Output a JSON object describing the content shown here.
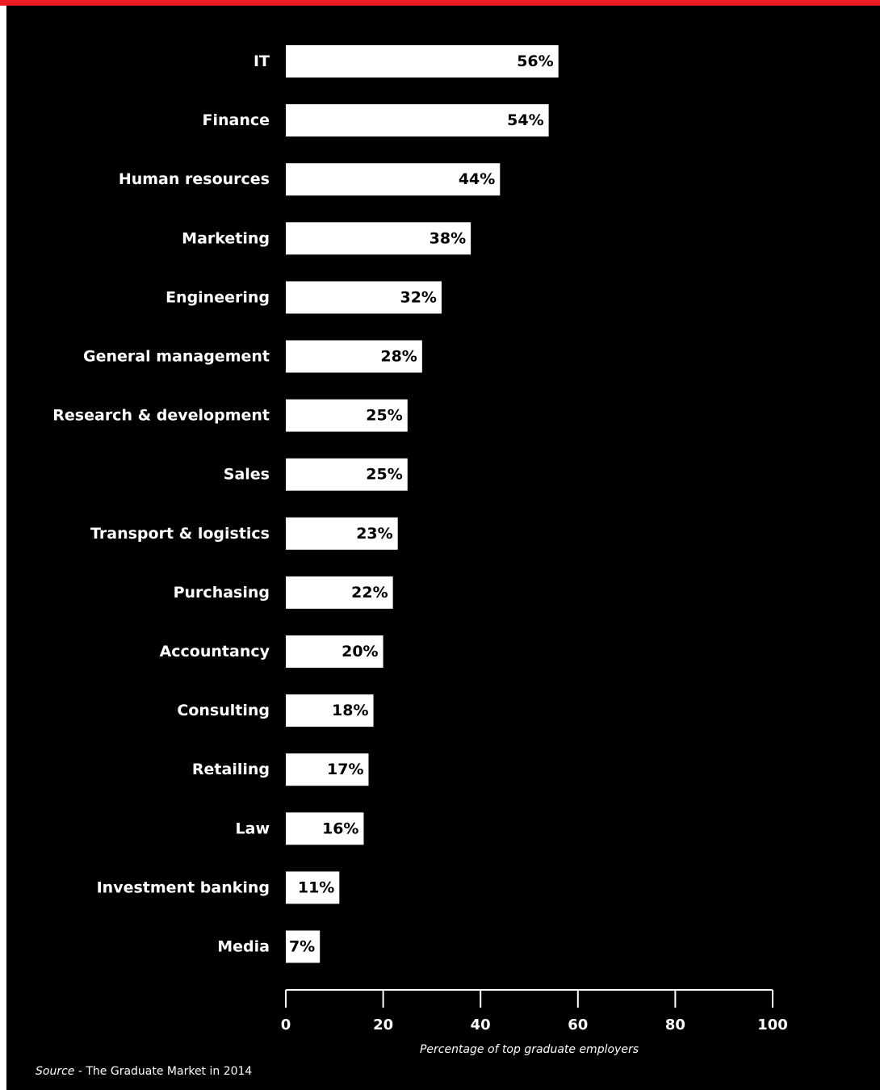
{
  "colors": {
    "background": "#000000",
    "accent": "#ee1c25",
    "bar": "#ffffff",
    "bar_text": "#000000",
    "text": "#ffffff"
  },
  "chart_data": {
    "type": "bar",
    "orientation": "horizontal",
    "categories": [
      "IT",
      "Finance",
      "Human resources",
      "Marketing",
      "Engineering",
      "General management",
      "Research & development",
      "Sales",
      "Transport & logistics",
      "Purchasing",
      "Accountancy",
      "Consulting",
      "Retailing",
      "Law",
      "Investment banking",
      "Media"
    ],
    "values": [
      56,
      54,
      44,
      38,
      32,
      28,
      25,
      25,
      23,
      22,
      20,
      18,
      17,
      16,
      11,
      7
    ],
    "value_labels": [
      "56%",
      "54%",
      "44%",
      "38%",
      "32%",
      "28%",
      "25%",
      "25%",
      "23%",
      "22%",
      "20%",
      "18%",
      "17%",
      "16%",
      "11%",
      "7%"
    ],
    "xlabel": "Percentage of top graduate employers",
    "xlim": [
      0,
      100
    ],
    "xticks": [
      0,
      20,
      40,
      60,
      80,
      100
    ],
    "grid": false,
    "legend": "none"
  },
  "source": {
    "label": "Source",
    "separator": " - ",
    "text": "The Graduate Market in 2014"
  }
}
